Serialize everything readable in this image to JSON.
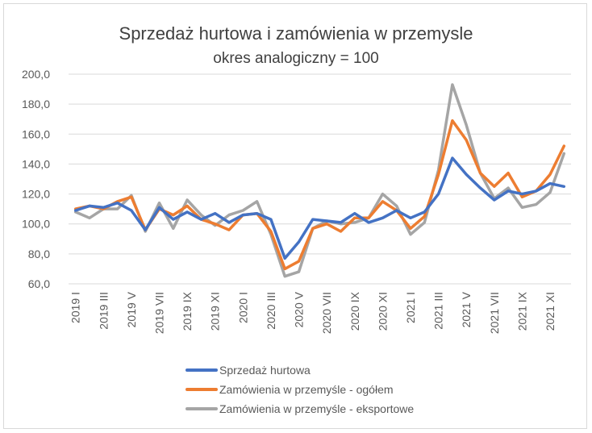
{
  "chart_data": {
    "type": "line",
    "title": "Sprzedaż hurtowa i zamówienia w przemysle",
    "subtitle": "okres analogiczny = 100",
    "xlabel": "",
    "ylabel": "",
    "ylim": [
      60,
      200
    ],
    "yticks": [
      "60,0",
      "80,0",
      "100,0",
      "120,0",
      "140,0",
      "160,0",
      "180,0",
      "200,0"
    ],
    "grid": true,
    "legend_position": "bottom",
    "x": [
      "2019 I",
      "2019 II",
      "2019 III",
      "2019 IV",
      "2019 V",
      "2019 VI",
      "2019 VII",
      "2019 VIII",
      "2019 IX",
      "2019 X",
      "2019 XI",
      "2019 XII",
      "2020 I",
      "2020 II",
      "2020 III",
      "2020 IV",
      "2020 V",
      "2020 VI",
      "2020 VII",
      "2020 VIII",
      "2020 IX",
      "2020 X",
      "2020 XI",
      "2020 XII",
      "2021 I",
      "2021 II",
      "2021 III",
      "2021 IV",
      "2021 V",
      "2021 VI",
      "2021 VII",
      "2021 VIII",
      "2021 IX",
      "2021 X",
      "2021 XI",
      "2021 XII"
    ],
    "xtick_labels": [
      "2019 I",
      "2019 III",
      "2019 V",
      "2019 VII",
      "2019 IX",
      "2019 XI",
      "2020 I",
      "2020 III",
      "2020 V",
      "2020 VII",
      "2020 IX",
      "2020 XI",
      "2021 I",
      "2021 III",
      "2021 V",
      "2021 VII",
      "2021 IX",
      "2021 XI"
    ],
    "series": [
      {
        "name": "Sprzedaż hurtowa",
        "color": "#4472c4",
        "values": [
          109,
          112,
          111,
          114,
          109,
          96,
          111,
          103,
          108,
          103,
          107,
          101,
          106,
          107,
          103,
          77,
          88,
          103,
          102,
          101,
          107,
          101,
          104,
          109,
          104,
          108,
          120,
          144,
          133,
          124,
          116,
          122,
          120,
          122,
          127,
          125
        ]
      },
      {
        "name": "Zamówienia w przemyśle - ogółem",
        "color": "#ed7d31",
        "values": [
          110,
          112,
          110,
          115,
          118,
          96,
          110,
          106,
          112,
          103,
          100,
          96,
          106,
          107,
          95,
          70,
          75,
          97,
          100,
          95,
          104,
          104,
          115,
          109,
          97,
          105,
          133,
          169,
          156,
          134,
          125,
          134,
          118,
          122,
          133,
          152
        ]
      },
      {
        "name": "Zamówienia w przemyśle - eksportowe",
        "color": "#a5a5a5",
        "values": [
          108,
          104,
          110,
          110,
          119,
          95,
          114,
          97,
          116,
          106,
          99,
          106,
          109,
          115,
          93,
          65,
          68,
          97,
          102,
          100,
          101,
          104,
          120,
          112,
          93,
          101,
          136,
          193,
          166,
          134,
          117,
          124,
          111,
          113,
          121,
          147
        ]
      }
    ]
  }
}
